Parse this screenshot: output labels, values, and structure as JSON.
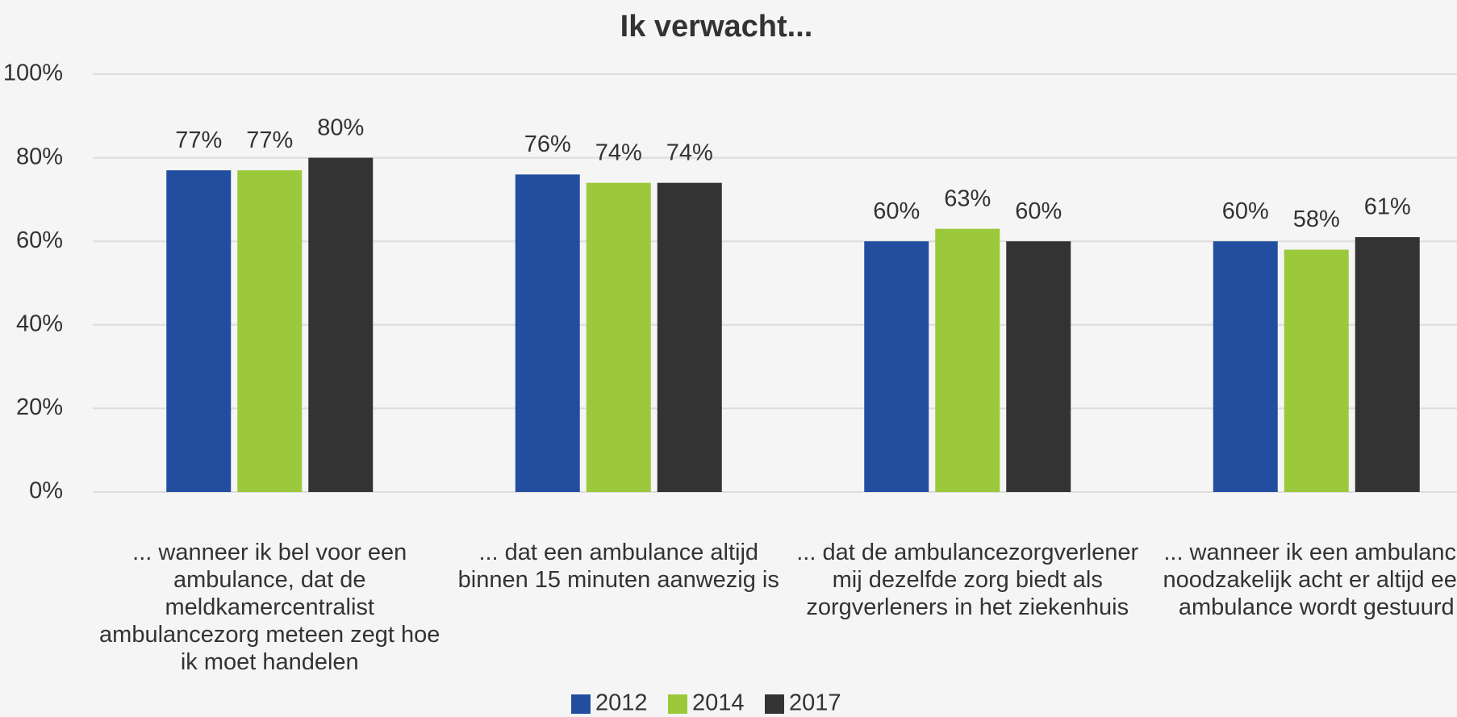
{
  "chart_data": {
    "type": "bar",
    "title": "Ik verwacht...",
    "categories": [
      "... wanneer ik bel voor een ambulance, dat de meldkamercentralist ambulancezorg meteen zegt hoe ik moet handelen",
      "... dat een ambulance altijd binnen 15 minuten aanwezig is",
      "... dat de ambulancezorgverlener mij dezelfde zorg biedt als zorgverleners in het ziekenhuis",
      "... wanneer ik een ambulance noodzakelijk acht er altijd een ambulance wordt gestuurd"
    ],
    "series": [
      {
        "name": "2012",
        "color": "#234ea0",
        "values": [
          77,
          76,
          60,
          60
        ],
        "value_labels": [
          "77%",
          "76%",
          "60%",
          "60%"
        ]
      },
      {
        "name": "2014",
        "color": "#9bc93b",
        "values": [
          77,
          74,
          63,
          58
        ],
        "value_labels": [
          "77%",
          "74%",
          "63%",
          "58%"
        ]
      },
      {
        "name": "2017",
        "color": "#333333",
        "values": [
          80,
          74,
          60,
          61
        ],
        "value_labels": [
          "80%",
          "74%",
          "60%",
          "61%"
        ]
      }
    ],
    "ylim": [
      0,
      100
    ],
    "yticks": [
      {
        "value": 0,
        "label": "0%"
      },
      {
        "value": 20,
        "label": "20%"
      },
      {
        "value": 40,
        "label": "40%"
      },
      {
        "value": 60,
        "label": "60%"
      },
      {
        "value": 80,
        "label": "80%"
      },
      {
        "value": 100,
        "label": "100%"
      }
    ],
    "grid": true,
    "legend": "bottom"
  }
}
